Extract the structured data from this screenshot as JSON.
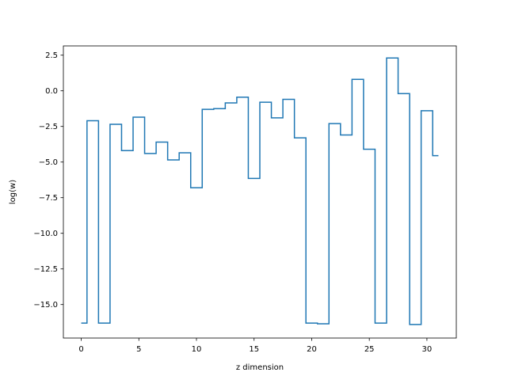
{
  "chart_data": {
    "type": "line",
    "drawstyle": "steps-mid",
    "xlabel": "z dimension",
    "ylabel": "log(w)",
    "xlim": [
      -1.55,
      32.55
    ],
    "ylim": [
      -17.35,
      3.15
    ],
    "xticks": [
      0,
      5,
      10,
      15,
      20,
      25,
      30
    ],
    "yticks": [
      2.5,
      0.0,
      -2.5,
      -5.0,
      -7.5,
      -10.0,
      -12.5,
      -15.0
    ],
    "ytick_labels": [
      "2.5",
      "0.0",
      "−2.5",
      "−5.0",
      "−7.5",
      "−10.0",
      "−12.5",
      "−15.0"
    ],
    "grid": false,
    "series": [
      {
        "color": "#1f77b4",
        "x": [
          0,
          1,
          2,
          3,
          4,
          5,
          6,
          7,
          8,
          9,
          10,
          11,
          12,
          13,
          14,
          15,
          16,
          17,
          18,
          19,
          20,
          21,
          22,
          23,
          24,
          25,
          26,
          27,
          28,
          29,
          30,
          31
        ],
        "y": [
          -16.3,
          -2.1,
          -16.3,
          -2.35,
          -4.2,
          -1.85,
          -4.4,
          -3.6,
          -4.85,
          -4.35,
          -6.8,
          -1.3,
          -1.25,
          -0.85,
          -0.45,
          -6.15,
          -0.8,
          -1.9,
          -0.6,
          -3.3,
          -16.3,
          -16.35,
          -2.3,
          -3.1,
          0.8,
          -4.1,
          -16.3,
          2.3,
          -0.2,
          -16.4,
          -1.4,
          -4.55
        ]
      }
    ]
  }
}
